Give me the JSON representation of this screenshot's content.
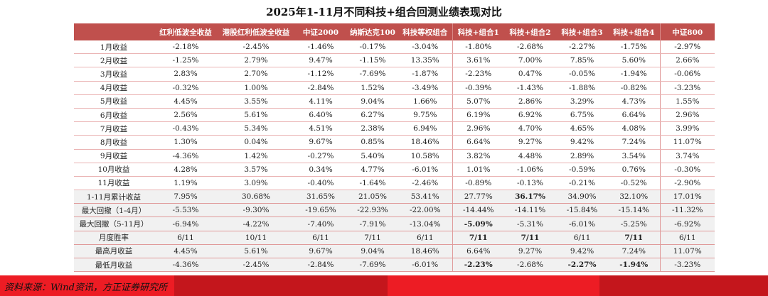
{
  "title": "2025年1-11月不同科技+组合回测业绩表现对比",
  "columns": [
    "",
    "红利低波全收益",
    "港股红利低波全收益",
    "中证2000",
    "纳斯达克100",
    "科技等权组合",
    "科技+组合1",
    "科技+组合2",
    "科技+组合3",
    "科技+组合4",
    "中证800"
  ],
  "rows": [
    {
      "label": "1月收益",
      "values": [
        "-2.18%",
        "-2.45%",
        "-1.46%",
        "-0.17%",
        "-3.04%",
        "-1.80%",
        "-2.68%",
        "-2.27%",
        "-1.75%",
        "-2.97%"
      ]
    },
    {
      "label": "2月收益",
      "values": [
        "-1.25%",
        "2.79%",
        "9.47%",
        "-1.15%",
        "13.35%",
        "3.61%",
        "7.00%",
        "7.85%",
        "5.60%",
        "2.66%"
      ]
    },
    {
      "label": "3月收益",
      "values": [
        "2.83%",
        "2.70%",
        "-1.12%",
        "-7.69%",
        "-1.87%",
        "-2.23%",
        "0.47%",
        "-0.05%",
        "-1.94%",
        "-0.06%"
      ]
    },
    {
      "label": "4月收益",
      "values": [
        "-0.32%",
        "1.00%",
        "-2.84%",
        "1.52%",
        "-3.49%",
        "-0.39%",
        "-1.43%",
        "-1.88%",
        "-0.82%",
        "-3.23%"
      ]
    },
    {
      "label": "5月收益",
      "values": [
        "4.45%",
        "3.55%",
        "4.11%",
        "9.04%",
        "1.66%",
        "5.07%",
        "2.86%",
        "3.29%",
        "4.73%",
        "1.55%"
      ]
    },
    {
      "label": "6月收益",
      "values": [
        "2.56%",
        "5.61%",
        "6.40%",
        "6.27%",
        "9.75%",
        "6.19%",
        "6.92%",
        "6.75%",
        "6.64%",
        "2.96%"
      ]
    },
    {
      "label": "7月收益",
      "values": [
        "-0.43%",
        "5.34%",
        "4.51%",
        "2.38%",
        "6.94%",
        "2.96%",
        "4.70%",
        "4.65%",
        "4.08%",
        "3.99%"
      ]
    },
    {
      "label": "8月收益",
      "values": [
        "1.30%",
        "0.04%",
        "9.67%",
        "0.85%",
        "18.46%",
        "6.64%",
        "9.27%",
        "9.42%",
        "7.24%",
        "11.07%"
      ]
    },
    {
      "label": "9月收益",
      "values": [
        "-4.36%",
        "1.42%",
        "-0.27%",
        "5.40%",
        "10.58%",
        "3.82%",
        "4.48%",
        "2.89%",
        "3.54%",
        "3.74%"
      ]
    },
    {
      "label": "10月收益",
      "values": [
        "4.28%",
        "3.57%",
        "0.34%",
        "4.77%",
        "-6.01%",
        "1.01%",
        "-1.06%",
        "-0.59%",
        "0.76%",
        "-0.30%"
      ]
    },
    {
      "label": "11月收益",
      "values": [
        "1.19%",
        "3.09%",
        "-0.40%",
        "-1.64%",
        "-2.46%",
        "-0.89%",
        "-0.13%",
        "-0.21%",
        "-0.52%",
        "-2.90%"
      ]
    },
    {
      "label": "1-11月累计收益",
      "stat": true,
      "bold": [
        6
      ],
      "values": [
        "7.95%",
        "30.68%",
        "31.65%",
        "21.05%",
        "53.41%",
        "27.77%",
        "36.17%",
        "34.90%",
        "32.10%",
        "17.01%"
      ]
    },
    {
      "label": "最大回撤（1-4月）",
      "stat": true,
      "bold": [],
      "values": [
        "-5.53%",
        "-9.30%",
        "-19.65%",
        "-22.93%",
        "-22.00%",
        "-14.44%",
        "-14.11%",
        "-15.84%",
        "-15.14%",
        "-11.32%"
      ]
    },
    {
      "label": "最大回撤（5-11月）",
      "stat": true,
      "bold": [
        5
      ],
      "values": [
        "-6.94%",
        "-4.22%",
        "-7.40%",
        "-7.91%",
        "-13.04%",
        "-5.09%",
        "-5.31%",
        "-6.01%",
        "-5.25%",
        "-6.92%"
      ]
    },
    {
      "label": "月度胜率",
      "stat": true,
      "bold": [
        5,
        6,
        8
      ],
      "values": [
        "6/11",
        "10/11",
        "6/11",
        "7/11",
        "6/11",
        "7/11",
        "7/11",
        "6/11",
        "7/11",
        "6/11"
      ]
    },
    {
      "label": "最高月收益",
      "stat": true,
      "bold": [],
      "values": [
        "4.45%",
        "5.61%",
        "9.67%",
        "9.04%",
        "18.46%",
        "6.64%",
        "9.27%",
        "9.42%",
        "7.24%",
        "11.07%"
      ]
    },
    {
      "label": "最低月收益",
      "stat": true,
      "bold": [
        5,
        7,
        8
      ],
      "values": [
        "-4.36%",
        "-2.45%",
        "-2.84%",
        "-7.69%",
        "-6.01%",
        "-2.23%",
        "-2.68%",
        "-2.27%",
        "-1.94%",
        "-3.23%"
      ]
    }
  ],
  "footer": {
    "source": "资料来源：Wind资讯，方正证券研究所"
  },
  "colors": {
    "header": "#c0504d",
    "footer_bright": "#ed1c24",
    "footer_dark": "#c4161c"
  }
}
